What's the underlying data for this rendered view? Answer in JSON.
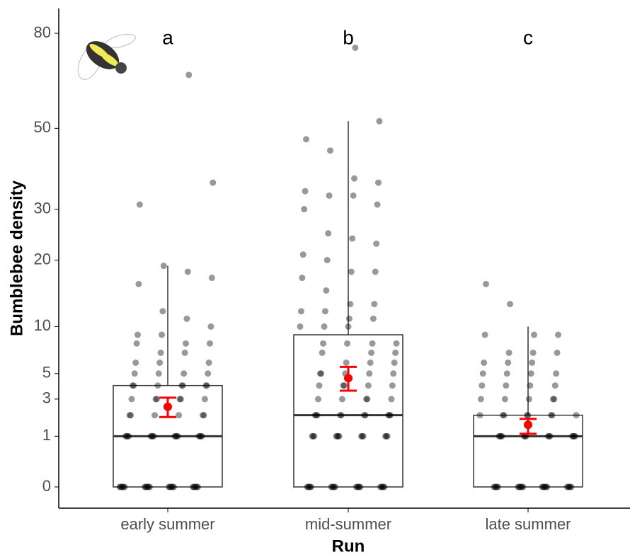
{
  "chart_data": {
    "type": "box",
    "y_label": "Bumblebee density",
    "x_label": "Run",
    "scale": "sqrt",
    "ylim": [
      0,
      89
    ],
    "yticks": [
      0,
      1,
      3,
      5,
      10,
      20,
      30,
      50,
      80
    ],
    "point_color": "#000000",
    "mean_color": "#ff0000",
    "box_color": "#333333",
    "categories": [
      "early summer",
      "mid-summer",
      "late summer"
    ],
    "letters": [
      "a",
      "b",
      "c"
    ],
    "boxes": [
      {
        "min": 0,
        "q1": 0,
        "median": 1,
        "q3": 4,
        "max": 19,
        "mean": 2.5,
        "lower": 1.9,
        "upper": 3.1,
        "points": [
          0,
          0,
          0,
          0,
          0,
          0,
          0,
          0,
          0,
          0,
          0,
          0,
          0,
          0,
          0,
          0,
          0,
          0,
          0,
          0,
          0,
          0,
          0,
          0,
          1,
          1,
          1,
          1,
          1,
          1,
          1,
          1,
          1,
          1,
          1,
          1,
          1,
          1,
          1,
          1,
          2,
          2,
          2,
          2,
          2,
          2,
          3,
          3,
          3,
          3,
          3,
          3,
          4,
          4,
          4,
          4,
          4,
          4,
          4,
          5,
          5,
          5,
          5,
          6,
          6,
          6,
          7,
          7,
          8,
          8,
          8,
          9,
          9,
          10,
          11,
          12,
          16,
          17,
          18,
          19,
          31,
          36,
          66
        ]
      },
      {
        "min": 0,
        "q1": 0,
        "median": 2,
        "q3": 9,
        "max": 52,
        "mean": 4.6,
        "lower": 3.6,
        "upper": 5.6,
        "points": [
          0,
          0,
          0,
          0,
          0,
          0,
          0,
          0,
          0,
          0,
          0,
          0,
          0,
          0,
          0,
          0,
          0,
          0,
          0,
          0,
          1,
          1,
          1,
          1,
          1,
          1,
          1,
          1,
          1,
          1,
          1,
          1,
          1,
          2,
          2,
          2,
          2,
          2,
          2,
          2,
          2,
          2,
          2,
          3,
          3,
          3,
          3,
          3,
          4,
          4,
          4,
          4,
          4,
          5,
          5,
          5,
          5,
          5,
          6,
          6,
          6,
          7,
          7,
          7,
          8,
          8,
          8,
          8,
          10,
          10,
          10,
          11,
          11,
          12,
          12,
          13,
          13,
          15,
          17,
          18,
          18,
          20,
          21,
          23,
          24,
          25,
          30,
          31,
          33,
          33,
          34,
          36,
          37,
          44,
          47,
          52,
          75
        ]
      },
      {
        "min": 0,
        "q1": 0,
        "median": 1,
        "q3": 2,
        "max": 10,
        "mean": 1.5,
        "lower": 1.1,
        "upper": 1.8,
        "points": [
          0,
          0,
          0,
          0,
          0,
          0,
          0,
          0,
          0,
          0,
          0,
          0,
          0,
          0,
          0,
          0,
          0,
          0,
          0,
          0,
          0,
          0,
          1,
          1,
          1,
          1,
          1,
          1,
          1,
          1,
          1,
          1,
          1,
          1,
          1,
          1,
          2,
          2,
          2,
          2,
          2,
          2,
          2,
          2,
          3,
          3,
          3,
          3,
          3,
          4,
          4,
          4,
          4,
          5,
          5,
          5,
          5,
          6,
          6,
          6,
          7,
          7,
          7,
          9,
          9,
          9,
          13,
          16
        ]
      }
    ]
  }
}
